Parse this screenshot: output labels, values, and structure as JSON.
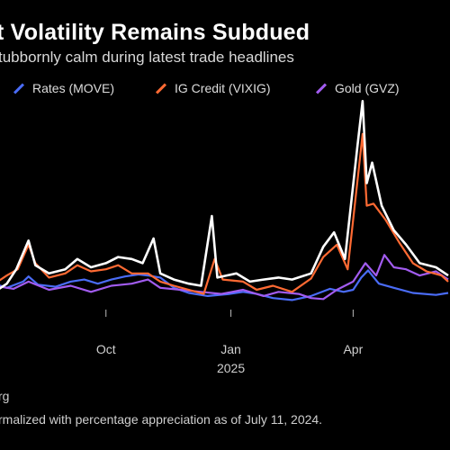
{
  "chart_data": {
    "type": "line",
    "title": "t Volatility Remains Subdued",
    "subtitle": "tubbornly calm during latest trade headlines",
    "x_ticks": [
      {
        "label": "Oct",
        "date": "2024-10-01"
      },
      {
        "label": "Jan",
        "date": "2025-01-01"
      },
      {
        "label": "Apr",
        "date": "2025-04-01"
      }
    ],
    "year_label": {
      "label": "2025",
      "date": "2025-01-01"
    },
    "xlim": [
      "2024-07-11",
      "2025-06-10"
    ],
    "ylim": [
      0,
      200
    ],
    "grid": false,
    "legend_position": "top",
    "series": [
      {
        "name": "Rates (MOVE)",
        "color": "#4a6cf7",
        "points": [
          [
            "2024-07-11",
            20
          ],
          [
            "2024-07-20",
            16
          ],
          [
            "2024-08-01",
            22
          ],
          [
            "2024-08-05",
            27
          ],
          [
            "2024-08-12",
            19
          ],
          [
            "2024-08-25",
            17
          ],
          [
            "2024-09-05",
            22
          ],
          [
            "2024-09-15",
            24
          ],
          [
            "2024-09-25",
            20
          ],
          [
            "2024-10-05",
            24
          ],
          [
            "2024-10-15",
            27
          ],
          [
            "2024-10-25",
            29
          ],
          [
            "2024-11-01",
            28
          ],
          [
            "2024-11-10",
            26
          ],
          [
            "2024-11-20",
            16
          ],
          [
            "2024-12-01",
            11
          ],
          [
            "2024-12-15",
            8
          ],
          [
            "2024-12-31",
            10
          ],
          [
            "2025-01-10",
            12
          ],
          [
            "2025-01-20",
            10
          ],
          [
            "2025-02-01",
            6
          ],
          [
            "2025-02-15",
            4
          ],
          [
            "2025-03-01",
            8
          ],
          [
            "2025-03-15",
            15
          ],
          [
            "2025-03-25",
            12
          ],
          [
            "2025-04-01",
            14
          ],
          [
            "2025-04-07",
            26
          ],
          [
            "2025-04-12",
            33
          ],
          [
            "2025-04-20",
            20
          ],
          [
            "2025-05-01",
            16
          ],
          [
            "2025-05-15",
            11
          ],
          [
            "2025-06-01",
            9
          ],
          [
            "2025-06-10",
            11
          ]
        ]
      },
      {
        "name": "IG Credit (VIXIG)",
        "color": "#ff6a33",
        "points": [
          [
            "2024-07-11",
            20
          ],
          [
            "2024-07-20",
            28
          ],
          [
            "2024-07-28",
            34
          ],
          [
            "2024-08-05",
            58
          ],
          [
            "2024-08-10",
            40
          ],
          [
            "2024-08-20",
            26
          ],
          [
            "2024-09-01",
            30
          ],
          [
            "2024-09-10",
            38
          ],
          [
            "2024-09-20",
            32
          ],
          [
            "2024-10-01",
            34
          ],
          [
            "2024-10-10",
            38
          ],
          [
            "2024-10-20",
            30
          ],
          [
            "2024-11-01",
            30
          ],
          [
            "2024-11-10",
            22
          ],
          [
            "2024-11-20",
            18
          ],
          [
            "2024-12-01",
            14
          ],
          [
            "2024-12-12",
            10
          ],
          [
            "2024-12-20",
            44
          ],
          [
            "2024-12-26",
            24
          ],
          [
            "2025-01-10",
            22
          ],
          [
            "2025-01-20",
            14
          ],
          [
            "2025-02-01",
            18
          ],
          [
            "2025-02-15",
            12
          ],
          [
            "2025-03-01",
            25
          ],
          [
            "2025-03-10",
            46
          ],
          [
            "2025-03-20",
            58
          ],
          [
            "2025-03-28",
            34
          ],
          [
            "2025-04-04",
            118
          ],
          [
            "2025-04-08",
            166
          ],
          [
            "2025-04-11",
            96
          ],
          [
            "2025-04-16",
            98
          ],
          [
            "2025-04-25",
            82
          ],
          [
            "2025-05-05",
            60
          ],
          [
            "2025-05-15",
            40
          ],
          [
            "2025-05-25",
            32
          ],
          [
            "2025-06-05",
            28
          ],
          [
            "2025-06-10",
            22
          ]
        ]
      },
      {
        "name": "Gold (GVZ)",
        "color": "#a25cf0",
        "points": [
          [
            "2024-07-11",
            18
          ],
          [
            "2024-07-25",
            15
          ],
          [
            "2024-08-05",
            22
          ],
          [
            "2024-08-20",
            14
          ],
          [
            "2024-09-05",
            18
          ],
          [
            "2024-09-20",
            12
          ],
          [
            "2024-10-05",
            18
          ],
          [
            "2024-10-20",
            20
          ],
          [
            "2024-11-01",
            24
          ],
          [
            "2024-11-10",
            16
          ],
          [
            "2024-11-25",
            14
          ],
          [
            "2024-12-10",
            12
          ],
          [
            "2024-12-25",
            10
          ],
          [
            "2025-01-10",
            14
          ],
          [
            "2025-01-25",
            8
          ],
          [
            "2025-02-05",
            12
          ],
          [
            "2025-02-20",
            10
          ],
          [
            "2025-03-01",
            6
          ],
          [
            "2025-03-10",
            5
          ],
          [
            "2025-03-20",
            14
          ],
          [
            "2025-04-01",
            22
          ],
          [
            "2025-04-10",
            40
          ],
          [
            "2025-04-18",
            28
          ],
          [
            "2025-04-24",
            48
          ],
          [
            "2025-05-01",
            36
          ],
          [
            "2025-05-10",
            34
          ],
          [
            "2025-05-20",
            28
          ],
          [
            "2025-06-01",
            32
          ],
          [
            "2025-06-10",
            24
          ]
        ]
      },
      {
        "name": "",
        "color": "#ffffff",
        "points": [
          [
            "2024-07-11",
            12
          ],
          [
            "2024-07-20",
            20
          ],
          [
            "2024-07-27",
            34
          ],
          [
            "2024-08-05",
            62
          ],
          [
            "2024-08-10",
            38
          ],
          [
            "2024-08-20",
            30
          ],
          [
            "2024-09-01",
            34
          ],
          [
            "2024-09-10",
            44
          ],
          [
            "2024-09-20",
            36
          ],
          [
            "2024-10-01",
            40
          ],
          [
            "2024-10-10",
            46
          ],
          [
            "2024-10-20",
            44
          ],
          [
            "2024-10-28",
            40
          ],
          [
            "2024-11-05",
            64
          ],
          [
            "2024-11-10",
            30
          ],
          [
            "2024-11-20",
            24
          ],
          [
            "2024-12-01",
            20
          ],
          [
            "2024-12-10",
            18
          ],
          [
            "2024-12-18",
            86
          ],
          [
            "2024-12-22",
            26
          ],
          [
            "2025-01-05",
            30
          ],
          [
            "2025-01-15",
            22
          ],
          [
            "2025-01-25",
            24
          ],
          [
            "2025-02-05",
            26
          ],
          [
            "2025-02-15",
            24
          ],
          [
            "2025-03-01",
            30
          ],
          [
            "2025-03-10",
            56
          ],
          [
            "2025-03-18",
            70
          ],
          [
            "2025-03-26",
            44
          ],
          [
            "2025-04-04",
            152
          ],
          [
            "2025-04-08",
            198
          ],
          [
            "2025-04-11",
            118
          ],
          [
            "2025-04-15",
            138
          ],
          [
            "2025-04-22",
            96
          ],
          [
            "2025-05-01",
            72
          ],
          [
            "2025-05-10",
            58
          ],
          [
            "2025-05-20",
            40
          ],
          [
            "2025-06-01",
            36
          ],
          [
            "2025-06-10",
            28
          ]
        ]
      }
    ]
  },
  "source": "rg",
  "note": "rmalized with percentage appreciation as of July 11, 2024."
}
